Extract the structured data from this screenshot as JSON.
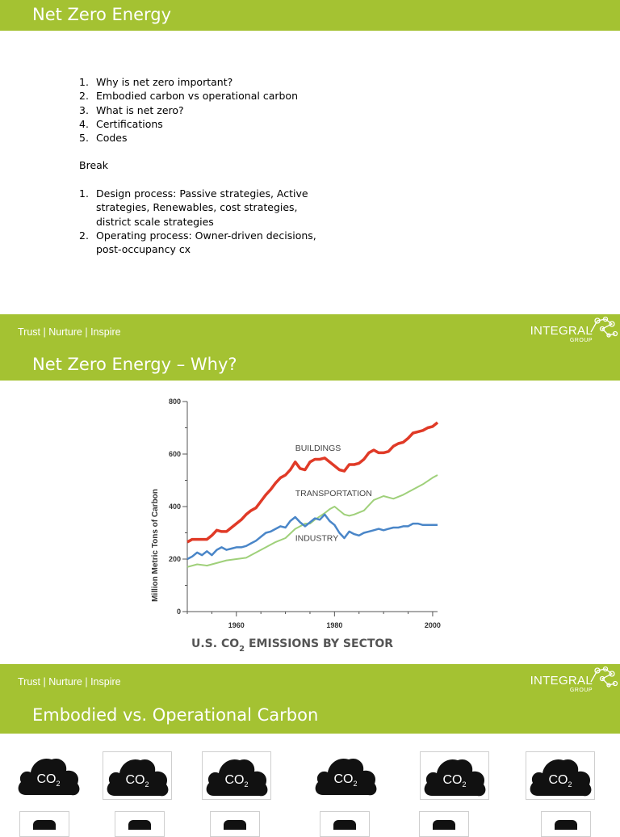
{
  "slide1": {
    "title": "Net Zero Energy",
    "agenda": [
      {
        "num": "1.",
        "text": "Why is net zero important?"
      },
      {
        "num": "2.",
        "text": "Embodied carbon vs operational carbon"
      },
      {
        "num": "3.",
        "text": "What is net zero?"
      },
      {
        "num": "4.",
        "text": "Certifications"
      },
      {
        "num": "5.",
        "text": "Codes"
      }
    ],
    "break_label": "Break",
    "agenda2": [
      {
        "num": "1.",
        "text": "Design process:  Passive strategies, Active strategies, Renewables, cost strategies, district scale strategies"
      },
      {
        "num": "2.",
        "text": "Operating process:  Owner-driven decisions, post-occupancy cx"
      }
    ]
  },
  "footer": {
    "tagline": "Trust  | Nurture | Inspire",
    "brand": "INTEGRAL",
    "brand_sub": "GROUP",
    "accent": "#a4c232"
  },
  "slide2": {
    "title": "Net Zero Energy – Why?",
    "chart_title_main": "U.S. CO",
    "chart_title_sub": "2",
    "chart_title_rest": " EMISSIONS BY SECTOR"
  },
  "slide3": {
    "title": "Embodied vs. Operational Carbon",
    "cloud_label_main": "CO",
    "cloud_label_sub": "2"
  },
  "chart_data": {
    "type": "line",
    "title": "U.S. CO2 EMISSIONS BY SECTOR",
    "ylabel": "Million Metric Tons of Carbon",
    "xlabel": "",
    "xlim": [
      1950,
      2001
    ],
    "ylim": [
      0,
      800
    ],
    "x_ticks": [
      1960,
      1980,
      2000
    ],
    "y_ticks": [
      0,
      200,
      400,
      600,
      800
    ],
    "series": [
      {
        "name": "BUILDINGS",
        "color": "#e03a27",
        "x": [
          1950,
          1951,
          1952,
          1953,
          1954,
          1955,
          1956,
          1957,
          1958,
          1959,
          1960,
          1961,
          1962,
          1963,
          1964,
          1965,
          1966,
          1967,
          1968,
          1969,
          1970,
          1971,
          1972,
          1973,
          1974,
          1975,
          1976,
          1977,
          1978,
          1979,
          1980,
          1981,
          1982,
          1983,
          1984,
          1985,
          1986,
          1987,
          1988,
          1989,
          1990,
          1991,
          1992,
          1993,
          1994,
          1995,
          1996,
          1997,
          1998,
          1999,
          2000,
          2001
        ],
        "y": [
          265,
          275,
          275,
          275,
          275,
          290,
          310,
          305,
          305,
          320,
          335,
          350,
          370,
          385,
          395,
          420,
          445,
          465,
          490,
          510,
          520,
          540,
          570,
          545,
          540,
          570,
          580,
          580,
          585,
          570,
          555,
          540,
          535,
          560,
          560,
          565,
          580,
          605,
          615,
          605,
          605,
          610,
          630,
          640,
          645,
          660,
          680,
          685,
          690,
          700,
          705,
          720
        ]
      },
      {
        "name": "TRANSPORTATION",
        "color": "#9fd07a",
        "x": [
          1950,
          1952,
          1954,
          1956,
          1958,
          1960,
          1962,
          1964,
          1966,
          1968,
          1970,
          1972,
          1974,
          1975,
          1976,
          1978,
          1979,
          1980,
          1981,
          1982,
          1983,
          1984,
          1986,
          1988,
          1990,
          1992,
          1994,
          1996,
          1998,
          2000,
          2001
        ],
        "y": [
          170,
          180,
          175,
          185,
          195,
          200,
          205,
          225,
          245,
          265,
          280,
          315,
          335,
          335,
          350,
          375,
          390,
          400,
          385,
          370,
          365,
          370,
          385,
          425,
          440,
          430,
          445,
          465,
          485,
          510,
          520
        ]
      },
      {
        "name": "INDUSTRY",
        "color": "#4a86c8",
        "x": [
          1950,
          1951,
          1952,
          1953,
          1954,
          1955,
          1956,
          1957,
          1958,
          1959,
          1960,
          1961,
          1962,
          1963,
          1964,
          1965,
          1966,
          1967,
          1968,
          1969,
          1970,
          1971,
          1972,
          1973,
          1974,
          1975,
          1976,
          1977,
          1978,
          1979,
          1980,
          1981,
          1982,
          1983,
          1984,
          1985,
          1986,
          1987,
          1988,
          1989,
          1990,
          1991,
          1992,
          1993,
          1994,
          1995,
          1996,
          1997,
          1998,
          1999,
          2000,
          2001
        ],
        "y": [
          200,
          210,
          225,
          215,
          230,
          215,
          235,
          245,
          235,
          240,
          245,
          245,
          250,
          260,
          270,
          285,
          300,
          305,
          315,
          325,
          320,
          345,
          360,
          340,
          325,
          340,
          355,
          350,
          370,
          345,
          330,
          300,
          280,
          305,
          295,
          290,
          300,
          305,
          310,
          315,
          310,
          315,
          320,
          320,
          325,
          325,
          335,
          335,
          330,
          330,
          330,
          330
        ]
      }
    ],
    "series_label_positions": [
      "BUILDINGS",
      "TRANSPORTATION",
      "INDUSTRY"
    ],
    "grid": false,
    "legend": "inline"
  }
}
